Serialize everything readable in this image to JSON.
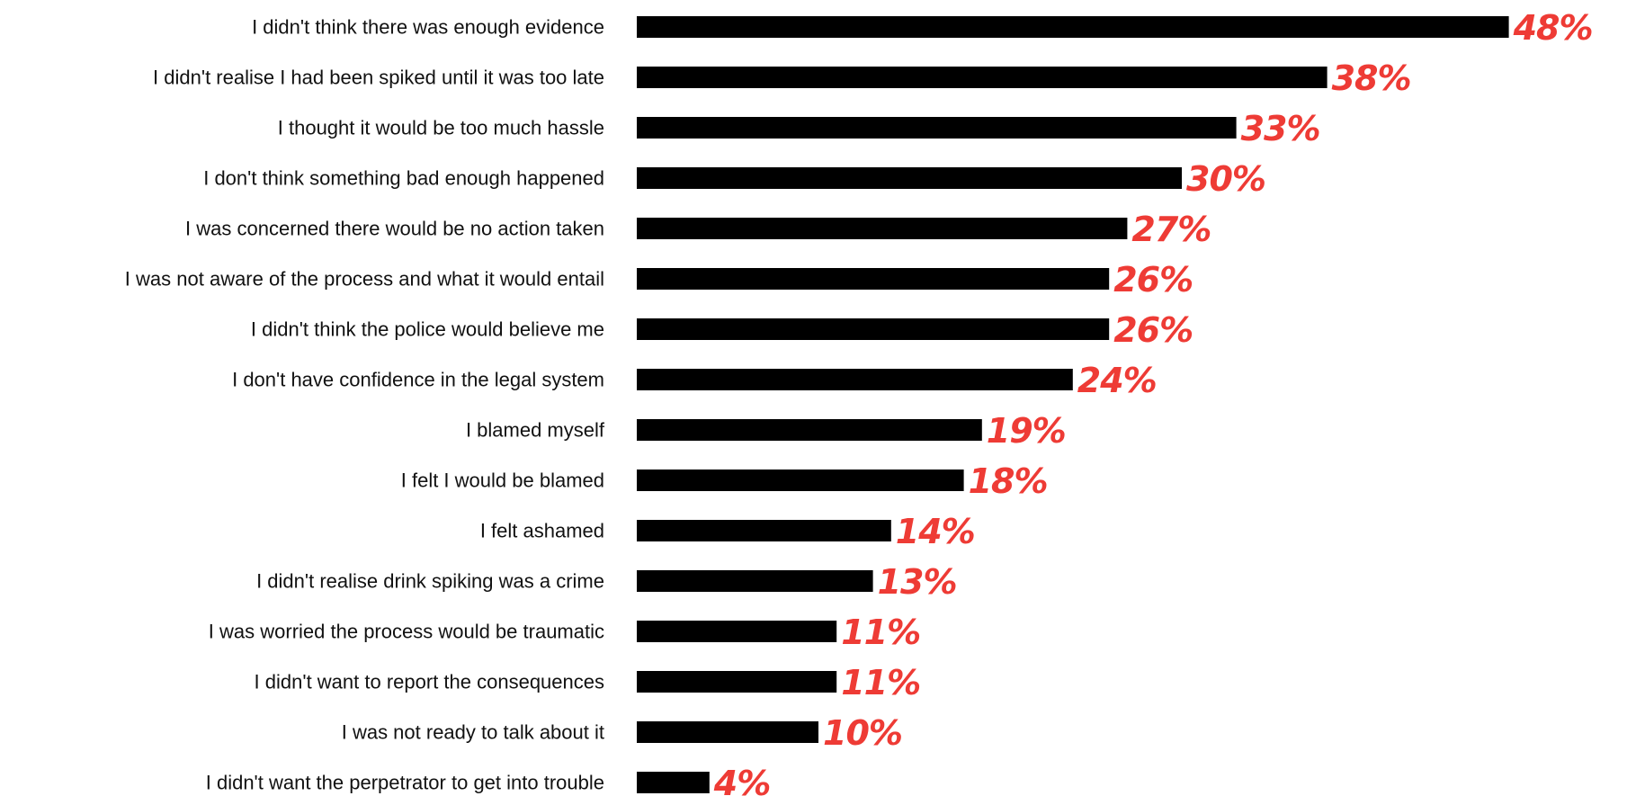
{
  "chart_data": {
    "type": "bar",
    "orientation": "horizontal",
    "categories": [
      "I didn't think there was enough evidence",
      "I didn't realise I had been spiked until it was too late",
      "I thought it would be too much hassle",
      "I don't think something bad enough happened",
      "I was concerned there would be no action taken",
      "I was not aware of the process and what it would entail",
      "I didn't think the police would believe me",
      "I don't have confidence in the legal system",
      "I blamed myself",
      "I felt I would be blamed",
      "I felt ashamed",
      "I didn't realise drink spiking was a crime",
      "I was worried the process would be traumatic",
      "I didn't want to report the consequences",
      "I was not ready to talk about it",
      "I didn't want the perpetrator to get into trouble"
    ],
    "values": [
      48,
      38,
      33,
      30,
      27,
      26,
      26,
      24,
      19,
      18,
      14,
      13,
      11,
      11,
      10,
      4
    ],
    "value_labels": [
      "48%",
      "38%",
      "33%",
      "30%",
      "27%",
      "26%",
      "26%",
      "24%",
      "19%",
      "18%",
      "14%",
      "13%",
      "11%",
      "11%",
      "10%",
      "4%"
    ],
    "title": "",
    "xlabel": "",
    "ylabel": "",
    "xlim": [
      0,
      48
    ],
    "grid": false,
    "legend": "none",
    "bar_color": "#000000",
    "label_color": "#EE3B35"
  }
}
